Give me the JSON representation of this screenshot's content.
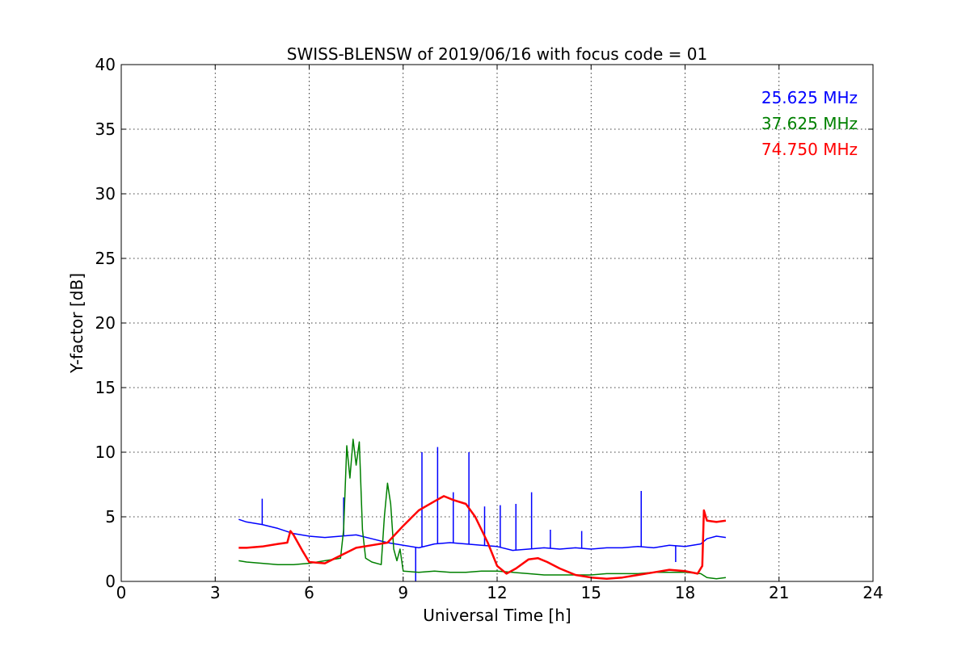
{
  "chart_data": {
    "type": "line",
    "title": "SWISS-BLENSW of 2019/06/16 with focus code = 01",
    "xlabel": "Universal Time [h]",
    "ylabel": "Y-factor [dB]",
    "xlim": [
      0,
      24
    ],
    "ylim": [
      0,
      40
    ],
    "xticks": [
      "0",
      "3",
      "6",
      "9",
      "12",
      "15",
      "18",
      "21",
      "24"
    ],
    "yticks": [
      "0",
      "5",
      "10",
      "15",
      "20",
      "25",
      "30",
      "35",
      "40"
    ],
    "grid": true,
    "legend_placement": "top-right",
    "series": [
      {
        "name": "25.625 MHz",
        "color": "#0000ff",
        "x": [
          3.75,
          4.0,
          4.5,
          5.0,
          5.5,
          6.0,
          6.5,
          7.0,
          7.5,
          8.0,
          8.5,
          9.0,
          9.5,
          10.0,
          10.5,
          11.0,
          11.5,
          12.0,
          12.5,
          13.0,
          13.5,
          14.0,
          14.5,
          15.0,
          15.5,
          16.0,
          16.5,
          17.0,
          17.5,
          18.0,
          18.5,
          18.7,
          19.0,
          19.3
        ],
        "y": [
          4.8,
          4.6,
          4.4,
          4.1,
          3.7,
          3.5,
          3.4,
          3.5,
          3.6,
          3.3,
          3.0,
          2.8,
          2.6,
          2.9,
          3.0,
          2.9,
          2.8,
          2.7,
          2.4,
          2.5,
          2.6,
          2.5,
          2.6,
          2.5,
          2.6,
          2.6,
          2.7,
          2.6,
          2.8,
          2.7,
          2.9,
          3.3,
          3.5,
          3.4
        ],
        "spikes": [
          {
            "x": 4.5,
            "y": 6.4
          },
          {
            "x": 7.1,
            "y": 6.5
          },
          {
            "x": 9.4,
            "y": 0.0
          },
          {
            "x": 9.6,
            "y": 10.0
          },
          {
            "x": 10.1,
            "y": 10.4
          },
          {
            "x": 10.6,
            "y": 6.9
          },
          {
            "x": 11.1,
            "y": 10.0
          },
          {
            "x": 11.6,
            "y": 5.8
          },
          {
            "x": 12.1,
            "y": 5.9
          },
          {
            "x": 12.6,
            "y": 6.0
          },
          {
            "x": 13.1,
            "y": 6.9
          },
          {
            "x": 13.7,
            "y": 4.0
          },
          {
            "x": 14.7,
            "y": 3.9
          },
          {
            "x": 16.6,
            "y": 7.0
          },
          {
            "x": 17.7,
            "y": 1.5
          }
        ]
      },
      {
        "name": "37.625 MHz",
        "color": "#008000",
        "x": [
          3.75,
          4.0,
          4.5,
          5.0,
          5.5,
          6.0,
          6.5,
          7.0,
          7.1,
          7.2,
          7.3,
          7.4,
          7.5,
          7.6,
          7.7,
          7.8,
          8.0,
          8.3,
          8.4,
          8.5,
          8.6,
          8.7,
          8.8,
          8.9,
          9.0,
          9.5,
          10.0,
          10.5,
          11.0,
          11.5,
          12.0,
          12.5,
          13.0,
          13.5,
          14.0,
          14.5,
          15.0,
          15.5,
          16.0,
          16.5,
          17.0,
          17.5,
          18.0,
          18.5,
          18.7,
          19.0,
          19.3
        ],
        "y": [
          1.6,
          1.5,
          1.4,
          1.3,
          1.3,
          1.4,
          1.6,
          1.8,
          4.0,
          10.5,
          8.0,
          11.0,
          9.0,
          10.8,
          4.0,
          1.8,
          1.5,
          1.3,
          5.0,
          7.6,
          6.0,
          2.5,
          1.6,
          2.5,
          0.8,
          0.7,
          0.8,
          0.7,
          0.7,
          0.8,
          0.8,
          0.7,
          0.6,
          0.5,
          0.5,
          0.5,
          0.5,
          0.6,
          0.6,
          0.6,
          0.7,
          0.7,
          0.7,
          0.6,
          0.3,
          0.2,
          0.3
        ]
      },
      {
        "name": "74.750 MHz",
        "color": "#ff0000",
        "x": [
          3.75,
          4.0,
          4.5,
          5.0,
          5.3,
          5.4,
          5.5,
          5.8,
          6.0,
          6.5,
          7.0,
          7.5,
          8.0,
          8.5,
          9.0,
          9.5,
          10.0,
          10.3,
          10.6,
          11.0,
          11.3,
          11.7,
          12.0,
          12.3,
          12.6,
          13.0,
          13.3,
          13.6,
          14.0,
          14.5,
          15.0,
          15.5,
          16.0,
          16.5,
          17.0,
          17.5,
          18.0,
          18.4,
          18.55,
          18.6,
          18.7,
          19.0,
          19.3
        ],
        "y": [
          2.6,
          2.6,
          2.7,
          2.9,
          3.0,
          3.9,
          3.6,
          2.3,
          1.5,
          1.4,
          2.0,
          2.6,
          2.8,
          3.0,
          4.3,
          5.5,
          6.2,
          6.6,
          6.3,
          6.0,
          5.0,
          3.0,
          1.2,
          0.6,
          1.0,
          1.7,
          1.8,
          1.5,
          1.0,
          0.5,
          0.3,
          0.2,
          0.3,
          0.5,
          0.7,
          0.9,
          0.8,
          0.6,
          1.2,
          5.5,
          4.7,
          4.6,
          4.7
        ]
      }
    ]
  }
}
